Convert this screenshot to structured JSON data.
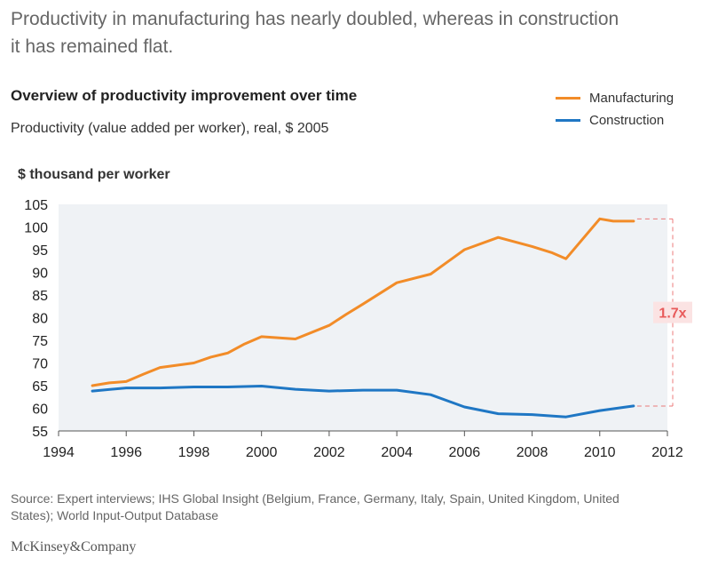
{
  "headline": "Productivity in manufacturing has nearly doubled, whereas in construction it has remained flat.",
  "brand": "McKinsey&Company",
  "source": "Source: Expert interviews; IHS Global Insight (Belgium, France, Germany, Italy, Spain, United Kingdom, United States); World Input-Output Database",
  "colors": {
    "manufacturing": "#f28c28",
    "construction": "#1f77c4",
    "plot_background": "#eff2f5",
    "annotation": "#e85a5a"
  },
  "chart_data": {
    "type": "line",
    "title": "Overview of productivity improvement over time",
    "subtitle": "Productivity (value added per worker), real, $ 2005",
    "ylabel": "$ thousand per worker",
    "xlabel": "",
    "xlim": [
      1994,
      2012
    ],
    "ylim": [
      55,
      105
    ],
    "x_ticks": [
      1994,
      1996,
      1998,
      2000,
      2002,
      2004,
      2006,
      2008,
      2010,
      2012
    ],
    "y_ticks": [
      55,
      60,
      65,
      70,
      75,
      80,
      85,
      90,
      95,
      100,
      105
    ],
    "legend_position": "top-right",
    "grid": false,
    "series": [
      {
        "name": "Manufacturing",
        "color": "#f28c28",
        "points": [
          [
            1995,
            65.0
          ],
          [
            1995.5,
            65.6
          ],
          [
            1996,
            65.9
          ],
          [
            1996.5,
            67.5
          ],
          [
            1997,
            69.0
          ],
          [
            1998,
            70.0
          ],
          [
            1998.5,
            71.3
          ],
          [
            1999,
            72.2
          ],
          [
            1999.5,
            74.2
          ],
          [
            2000,
            75.8
          ],
          [
            2001,
            75.3
          ],
          [
            2002,
            78.3
          ],
          [
            2002.5,
            80.7
          ],
          [
            2003,
            83.0
          ],
          [
            2004,
            87.7
          ],
          [
            2005,
            89.6
          ],
          [
            2006,
            95.0
          ],
          [
            2007,
            97.7
          ],
          [
            2008,
            95.7
          ],
          [
            2008.6,
            94.3
          ],
          [
            2009,
            93.0
          ],
          [
            2010,
            101.8
          ],
          [
            2010.4,
            101.3
          ],
          [
            2011,
            101.3
          ]
        ]
      },
      {
        "name": "Construction",
        "color": "#1f77c4",
        "points": [
          [
            1995,
            63.8
          ],
          [
            1996,
            64.5
          ],
          [
            1997,
            64.5
          ],
          [
            1998,
            64.7
          ],
          [
            1999,
            64.7
          ],
          [
            2000,
            64.9
          ],
          [
            2001,
            64.2
          ],
          [
            2002,
            63.8
          ],
          [
            2003,
            64.0
          ],
          [
            2004,
            64.0
          ],
          [
            2005,
            63.0
          ],
          [
            2006,
            60.3
          ],
          [
            2007,
            58.8
          ],
          [
            2008,
            58.6
          ],
          [
            2009,
            58.1
          ],
          [
            2010,
            59.5
          ],
          [
            2011,
            60.5
          ]
        ]
      }
    ],
    "annotation": {
      "label": "1.7x",
      "from_value": 60.5,
      "to_value": 101.8
    }
  }
}
